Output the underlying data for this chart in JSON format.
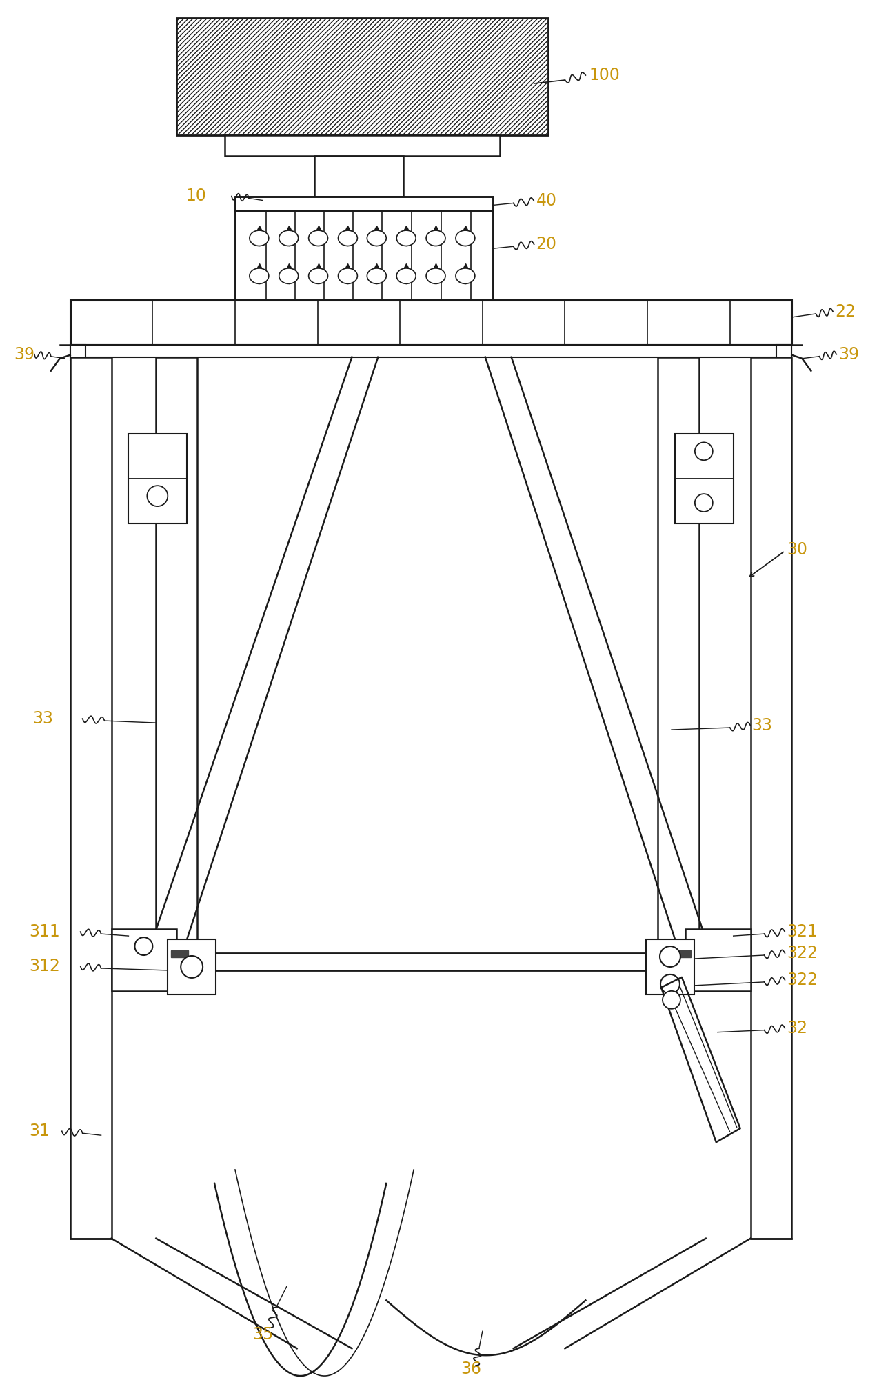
{
  "bg_color": "#ffffff",
  "line_color": "#1a1a1a",
  "label_color": "#c8960c",
  "figsize": [
    12.88,
    20.01
  ],
  "dpi": 100
}
